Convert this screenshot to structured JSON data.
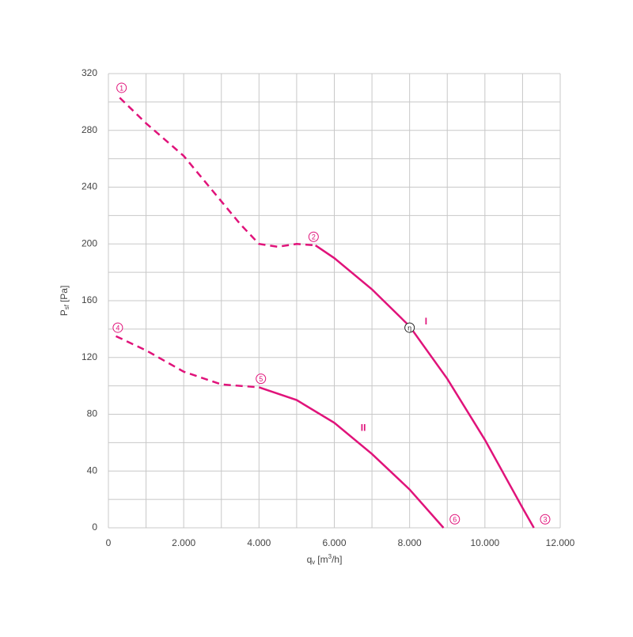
{
  "chart_data": {
    "type": "line",
    "xlabel": {
      "main": "q",
      "sub": "v",
      "unit_open": "[m",
      "sup": "3",
      "unit_close": "/h]"
    },
    "ylabel": {
      "main": "P",
      "sub": "sf",
      "unit": "[Pa]"
    },
    "xlim": [
      0,
      12000
    ],
    "ylim": [
      0,
      320
    ],
    "xticks": [
      0,
      {
        "value": 2000,
        "label": "2.000"
      },
      {
        "value": 4000,
        "label": "4.000"
      },
      {
        "value": 6000,
        "label": "6.000"
      },
      {
        "value": 8000,
        "label": "8.000"
      },
      {
        "value": 10000,
        "label": "10.000"
      },
      {
        "value": 12000,
        "label": "12.000"
      }
    ],
    "yticks": [
      0,
      40,
      80,
      120,
      160,
      200,
      240,
      280,
      320
    ],
    "xminorticks": [
      1000,
      3000,
      5000,
      7000,
      9000,
      11000
    ],
    "yminorticks": [
      20,
      60,
      100,
      140,
      180,
      220,
      260,
      300
    ],
    "grid": true,
    "grid_color": "#c8c8c8",
    "series": [
      {
        "name": "I",
        "color": "#e0137a",
        "name_x": 8400,
        "name_y": 145,
        "segments": [
          {
            "style": "dashed",
            "x": [
              300,
              1000,
              2000,
              3000,
              3500,
              4000,
              4500,
              5000,
              5500
            ],
            "values": [
              303,
              285,
              262,
              230,
              214,
              200,
              198,
              200,
              199
            ]
          },
          {
            "style": "solid",
            "x": [
              5500,
              6000,
              7000,
              8000,
              9000,
              10000,
              11000,
              11300
            ],
            "values": [
              199,
              190,
              168,
              142,
              105,
              62,
              14,
              0
            ]
          }
        ]
      },
      {
        "name": "II",
        "color": "#e0137a",
        "name_x": 6700,
        "name_y": 70,
        "segments": [
          {
            "style": "dashed",
            "x": [
              200,
              1000,
              2000,
              3000,
              4000
            ],
            "values": [
              135,
              125,
              110,
              101,
              99
            ]
          },
          {
            "style": "solid",
            "x": [
              4000,
              5000,
              6000,
              7000,
              8000,
              8900
            ],
            "values": [
              99,
              90,
              74,
              52,
              27,
              0
            ]
          }
        ]
      }
    ],
    "annotations": [
      {
        "label": "1",
        "x": 350,
        "y": 310,
        "color": "#e0137a"
      },
      {
        "label": "2",
        "x": 5450,
        "y": 205,
        "color": "#e0137a"
      },
      {
        "label": "3",
        "x": 11600,
        "y": 6,
        "color": "#e0137a"
      },
      {
        "label": "4",
        "x": 250,
        "y": 141,
        "color": "#e0137a"
      },
      {
        "label": "5",
        "x": 4050,
        "y": 105,
        "color": "#e0137a"
      },
      {
        "label": "6",
        "x": 9200,
        "y": 6,
        "color": "#e0137a"
      },
      {
        "label": "η",
        "x": 8000,
        "y": 141,
        "color": "#222222"
      }
    ]
  }
}
